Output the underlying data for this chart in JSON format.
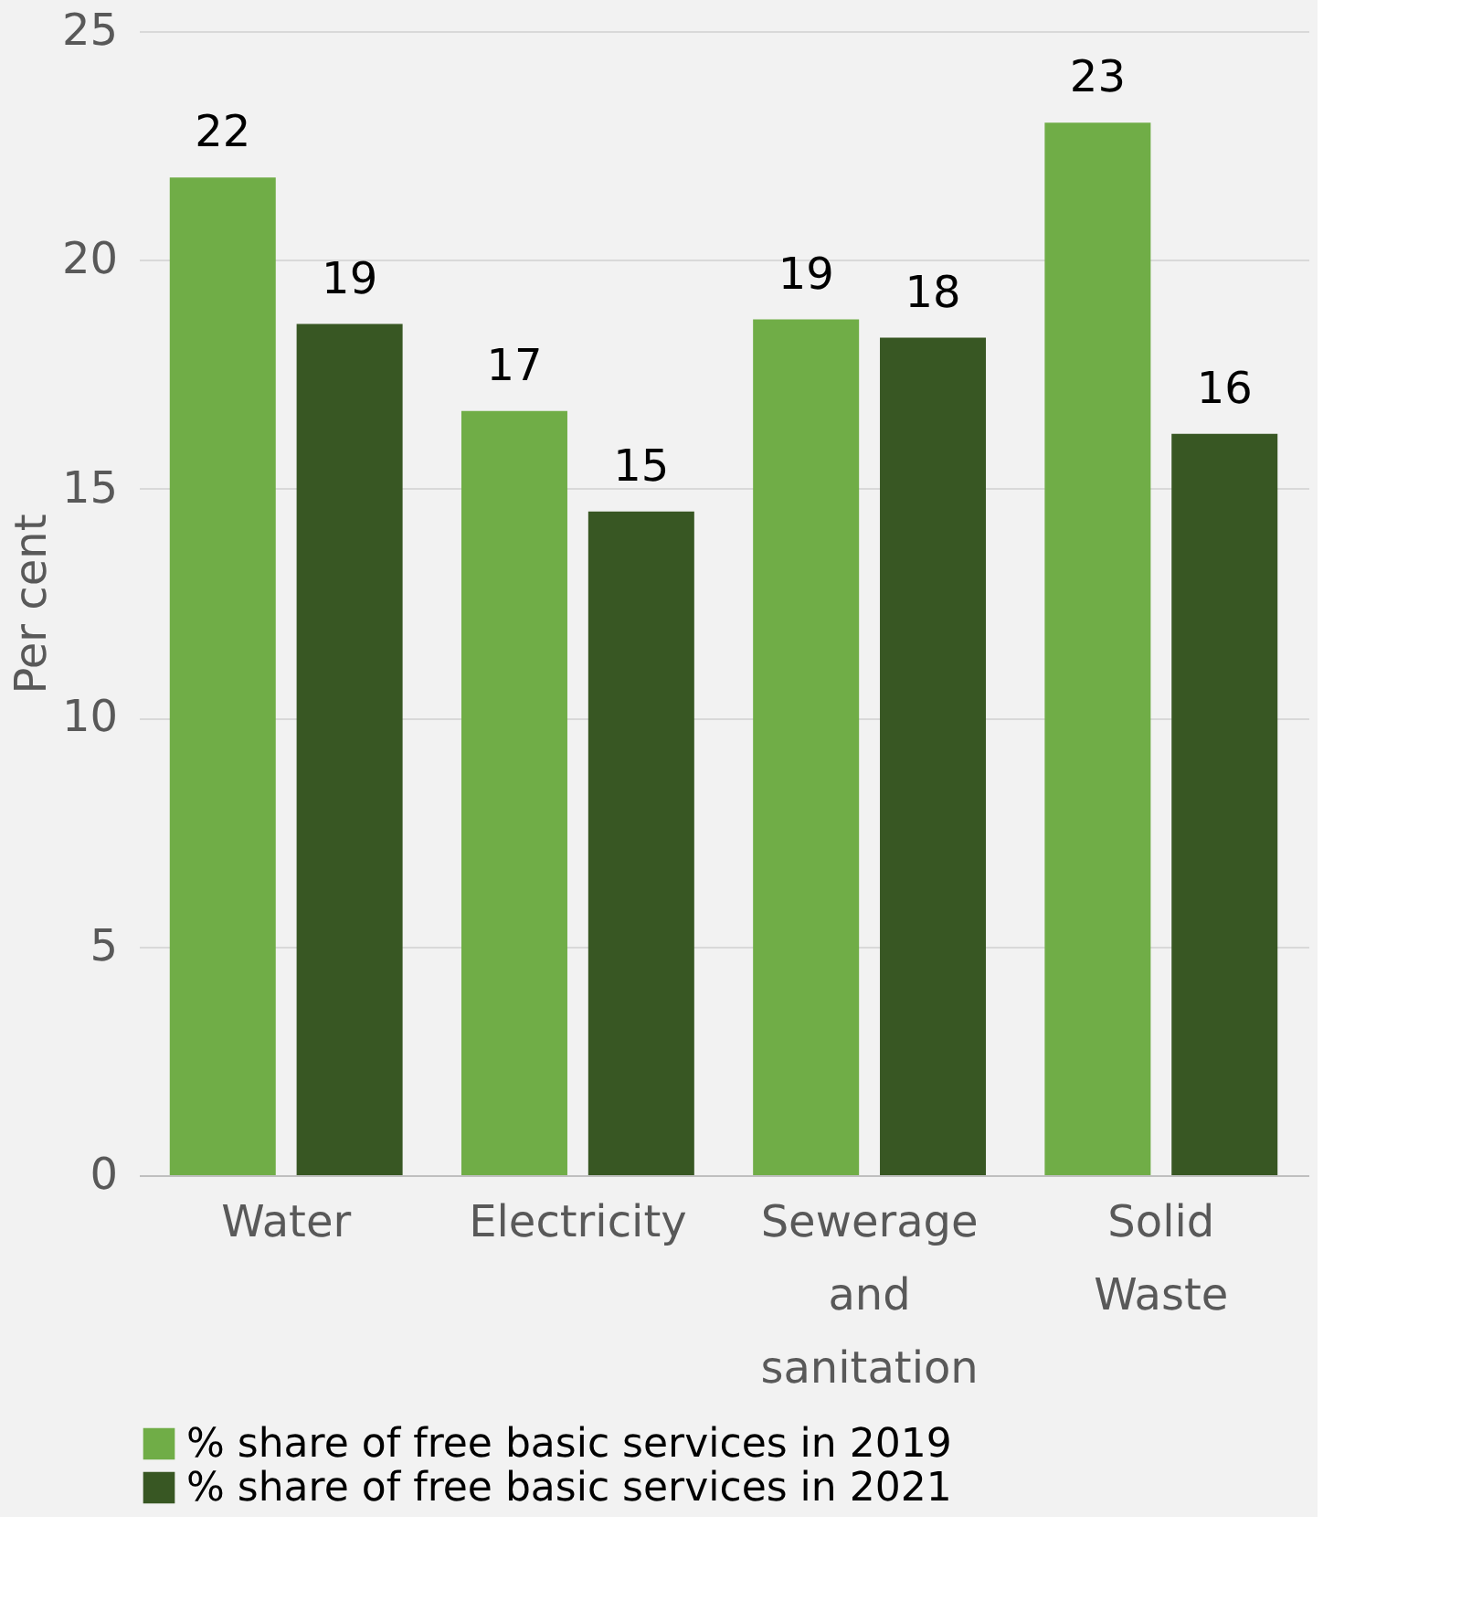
{
  "chart_data": {
    "type": "bar",
    "ylabel": "Per cent",
    "categories": [
      "Water",
      "Electricity",
      "Sewerage and sanitation",
      "Solid Waste"
    ],
    "series": [
      {
        "name": "% share of free basic services in 2019",
        "color": "#70ad47",
        "values": [
          21.8,
          16.7,
          18.7,
          23.0
        ],
        "value_labels": [
          "22",
          "17",
          "19",
          "23"
        ]
      },
      {
        "name": "% share of free basic services in 2021",
        "color": "#385723",
        "values": [
          18.6,
          14.5,
          18.3,
          16.2
        ],
        "value_labels": [
          "19",
          "15",
          "18",
          "16"
        ]
      }
    ],
    "ylim": [
      0,
      25
    ],
    "yticks": [
      0,
      5,
      10,
      15,
      20,
      25
    ],
    "grid": "y",
    "legend": "bottom"
  }
}
